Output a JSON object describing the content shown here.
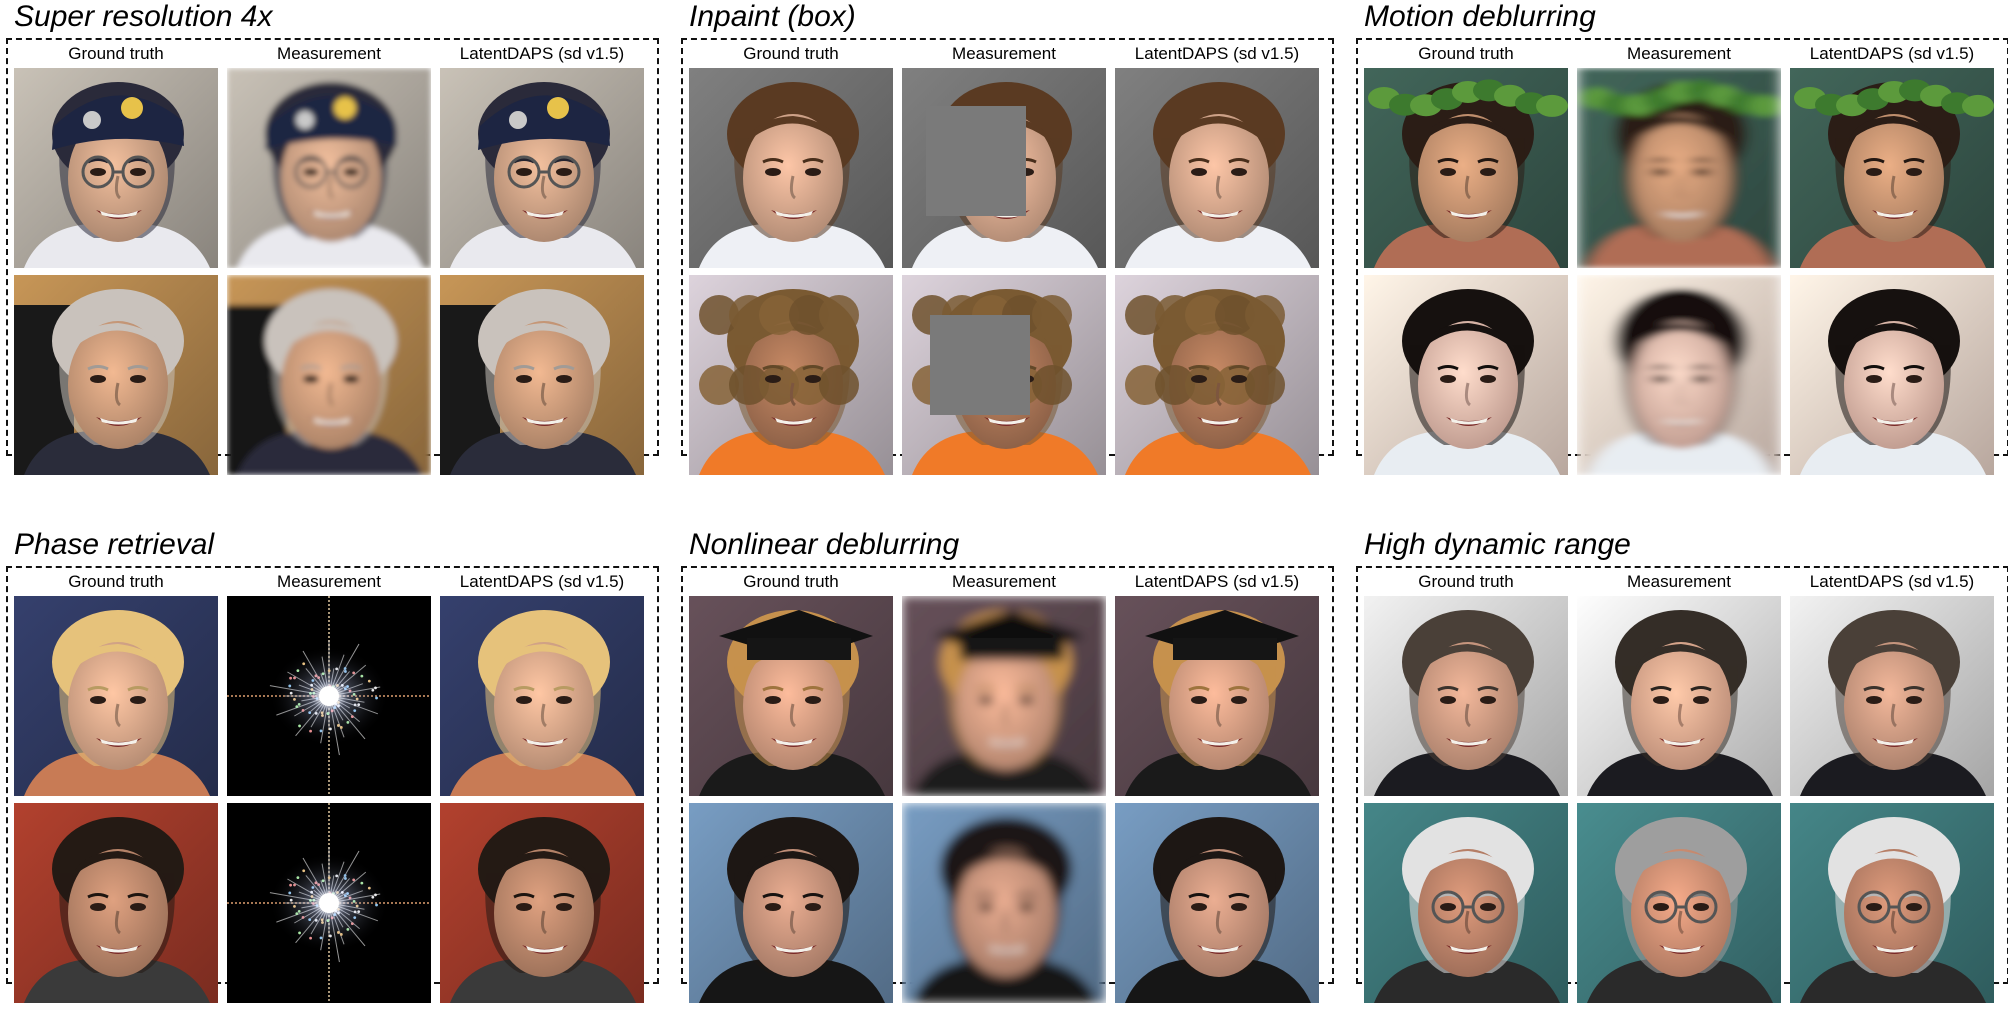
{
  "columns": [
    "Ground truth",
    "Measurement",
    "LatentDAPS (sd v1.5)"
  ],
  "panels": [
    {
      "title": "Super resolution 4x"
    },
    {
      "title": "Inpaint (box)"
    },
    {
      "title": "Motion deblurring"
    },
    {
      "title": "Phase retrieval"
    },
    {
      "title": "Nonlinear deblurring"
    },
    {
      "title": "High dynamic range"
    }
  ],
  "measurement_icons": {
    "super_resolution": "low-resolution-face-image",
    "inpaint": "gray-box-masked-face-image",
    "motion_deblur": "motion-blurred-face-image",
    "phase_retrieval": "fourier-magnitude-spectrum-image",
    "nonlinear_deblur": "blurred-face-image",
    "hdr": "saturated-face-image"
  }
}
